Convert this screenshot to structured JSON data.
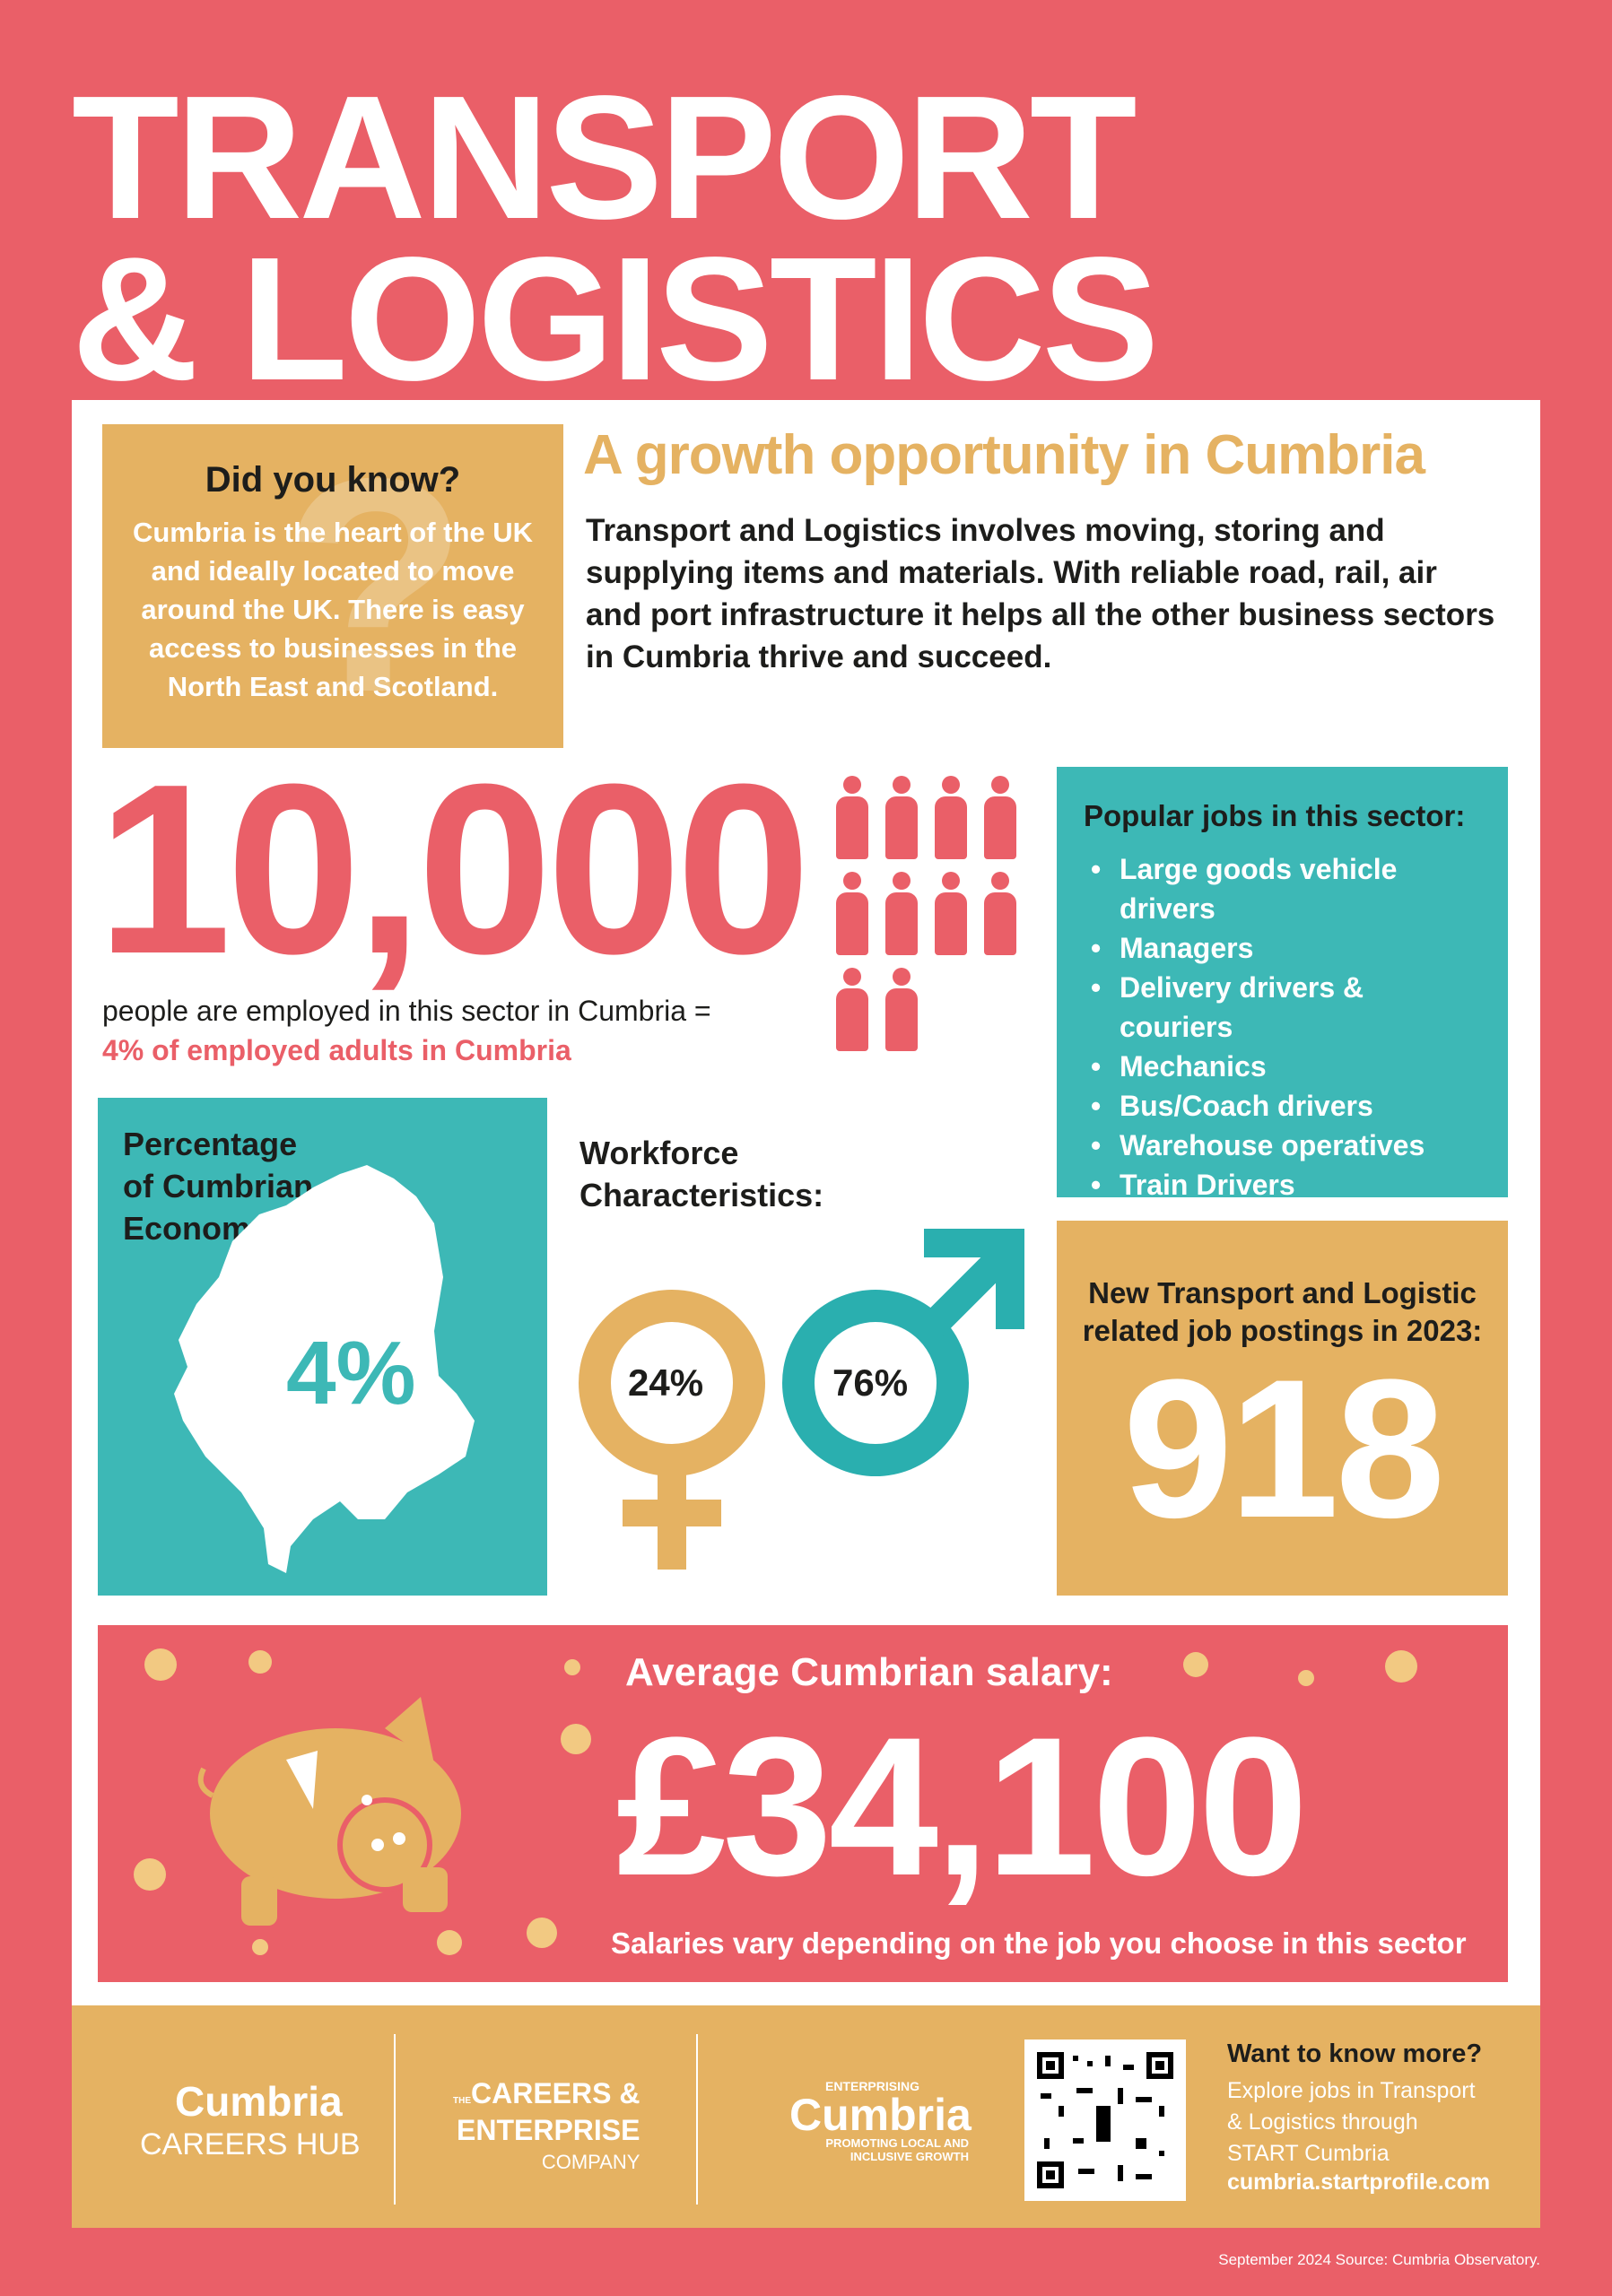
{
  "title": {
    "line1": "TRANSPORT",
    "line2": "& LOGISTICS"
  },
  "did_you_know": {
    "heading": "Did you know?",
    "text": "Cumbria is the heart of the UK and ideally located to move around the UK. There is easy access to businesses in the North East and Scotland."
  },
  "growth": {
    "heading": "A growth opportunity in Cumbria",
    "text": "Transport and Logistics involves moving, storing and supplying items and materials. With reliable road, rail, air and port infrastructure it helps all the other business sectors in Cumbria thrive and succeed."
  },
  "employment": {
    "number": "10,000",
    "text": "people are employed in this sector in Cumbria =",
    "highlight": "4% of employed adults in Cumbria",
    "people_icons": 10
  },
  "popular_jobs": {
    "heading": "Popular jobs in this sector:",
    "items": [
      "Large goods vehicle drivers",
      "Managers",
      "Delivery drivers & couriers",
      "Mechanics",
      "Bus/Coach drivers",
      "Warehouse operatives",
      "Train Drivers"
    ]
  },
  "economy": {
    "heading_lines": [
      "Percentage",
      "of Cumbrian",
      "Economy:"
    ],
    "value": "4%"
  },
  "workforce": {
    "heading_lines": [
      "Workforce",
      "Characteristics:"
    ],
    "female": "24%",
    "male": "76%"
  },
  "postings": {
    "heading_lines": [
      "New Transport and Logistic",
      "related job postings in 2023:"
    ],
    "value": "918"
  },
  "salary": {
    "heading": "Average Cumbrian salary:",
    "value": "£34,100",
    "note": "Salaries vary depending on the job you choose in this sector"
  },
  "footer": {
    "logo1": {
      "name": "Cumbria",
      "sub": "CAREERS HUB"
    },
    "logo2": {
      "the": "THE",
      "line1": "CAREERS &",
      "line2": "ENTERPRISE",
      "line3": "COMPANY"
    },
    "logo3": {
      "top": "ENTERPRISING",
      "name": "Cumbria",
      "tag1": "PROMOTING LOCAL AND",
      "tag2": "INCLUSIVE GROWTH"
    },
    "cta": {
      "heading": "Want to know more?",
      "lines": [
        "Explore jobs in Transport",
        "& Logistics through",
        "START Cumbria"
      ],
      "url": "cumbria.startprofile.com"
    }
  },
  "source": "September 2024 Source: Cumbria Observatory.",
  "colors": {
    "pink": "#EA5F68",
    "gold": "#E5B262",
    "teal": "#3DB8B6"
  }
}
